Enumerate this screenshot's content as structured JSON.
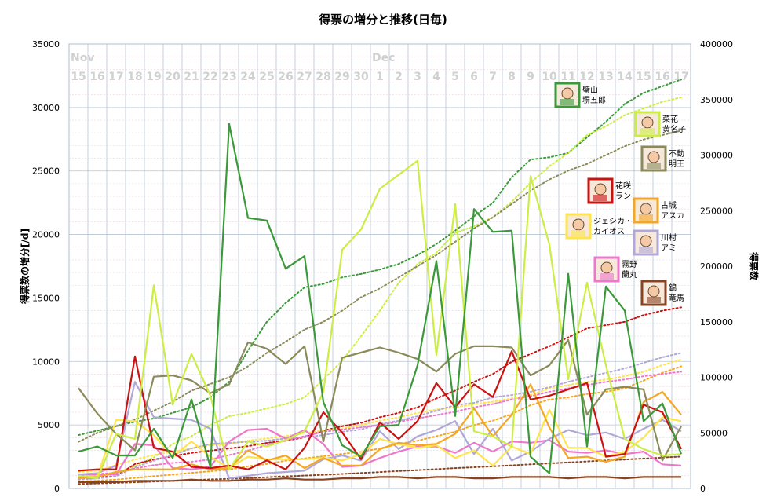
{
  "chart_data": {
    "type": "line",
    "title": "得票の増分と推移(日毎)",
    "ylabel": "得票数の増分[/d]",
    "y2label": "得票数",
    "ylim": [
      0,
      35000
    ],
    "y2lim": [
      0,
      400000
    ],
    "yticks": [
      "0",
      "5000",
      "10000",
      "15000",
      "20000",
      "25000",
      "30000",
      "35000"
    ],
    "y2ticks": [
      "0",
      "50000",
      "100000",
      "150000",
      "200000",
      "250000",
      "300000",
      "350000",
      "400000"
    ],
    "month_labels": [
      {
        "label": "Nov",
        "at": "15"
      },
      {
        "label": "Dec",
        "at": "1"
      }
    ],
    "categories": [
      "15",
      "16",
      "17",
      "18",
      "19",
      "20",
      "21",
      "22",
      "23",
      "24",
      "25",
      "26",
      "27",
      "28",
      "29",
      "30",
      "1",
      "2",
      "3",
      "4",
      "5",
      "6",
      "7",
      "8",
      "9",
      "10",
      "11",
      "12",
      "13",
      "14",
      "15",
      "16",
      "17"
    ],
    "grid": true,
    "series": [
      {
        "name": "璧山 塀五郎",
        "color": "#3a9a3a",
        "values": [
          2900,
          3300,
          2600,
          2600,
          4700,
          2400,
          7000,
          1700,
          28700,
          21300,
          21100,
          17300,
          18300,
          6800,
          3400,
          2500,
          4900,
          5000,
          9700,
          17900,
          5700,
          22000,
          20200,
          20300,
          2500,
          1200,
          16900,
          3300,
          15900,
          14000,
          5300,
          6700,
          2700
        ],
        "cumulative": [
          48000,
          52000,
          56000,
          60000,
          63000,
          68000,
          73000,
          82000,
          96000,
          124000,
          150000,
          167000,
          181000,
          184000,
          190000,
          193000,
          197000,
          202000,
          210000,
          220000,
          232000,
          245000,
          257000,
          280000,
          296000,
          298000,
          302000,
          316000,
          330000,
          346000,
          356000,
          362000,
          368000
        ]
      },
      {
        "name": "菜花 黄名子",
        "color": "#ccee44",
        "values": [
          1000,
          800,
          4300,
          3900,
          16000,
          6600,
          10600,
          7300,
          1500,
          3700,
          3300,
          3800,
          4500,
          7600,
          18800,
          20400,
          23600,
          24700,
          25800,
          10500,
          22400,
          4500,
          4100,
          3300,
          24600,
          19200,
          8600,
          16200,
          9700,
          3900,
          3100,
          2600,
          2700
        ],
        "cumulative": [
          10000,
          12000,
          14000,
          20000,
          28000,
          40000,
          47000,
          57000,
          65000,
          68000,
          72000,
          76000,
          82000,
          98000,
          115000,
          137000,
          160000,
          185000,
          202000,
          212000,
          230000,
          236000,
          244000,
          258000,
          275000,
          290000,
          302000,
          318000,
          326000,
          336000,
          342000,
          348000,
          352000
        ]
      },
      {
        "name": "不動 明王",
        "color": "#8a8a5a",
        "values": [
          7900,
          5900,
          4300,
          3000,
          8800,
          8900,
          8500,
          7500,
          8200,
          11500,
          11000,
          9800,
          11200,
          3700,
          10300,
          10700,
          11100,
          10700,
          10200,
          9200,
          10600,
          11200,
          11200,
          11100,
          8900,
          9700,
          11700,
          5800,
          7800,
          8000,
          7800,
          2200,
          4900
        ],
        "cumulative": [
          42000,
          50000,
          56000,
          62000,
          70000,
          78000,
          88000,
          94000,
          100000,
          110000,
          122000,
          132000,
          143000,
          150000,
          160000,
          172000,
          180000,
          190000,
          200000,
          210000,
          222000,
          234000,
          244000,
          256000,
          268000,
          278000,
          286000,
          292000,
          300000,
          308000,
          314000,
          318000,
          322000
        ]
      },
      {
        "name": "花咲 ラン",
        "color": "#cc1111",
        "values": [
          1400,
          1500,
          1500,
          10400,
          3200,
          2900,
          1700,
          1600,
          1800,
          1500,
          2200,
          1500,
          3200,
          6000,
          4400,
          2300,
          5200,
          3900,
          5300,
          8300,
          6400,
          8200,
          7200,
          10800,
          7000,
          7300,
          7800,
          8300,
          2500,
          2700,
          6600,
          6000,
          3100
        ],
        "cumulative": [
          9000,
          10000,
          11000,
          22000,
          26000,
          29000,
          32000,
          34000,
          36000,
          38000,
          41000,
          43000,
          46000,
          52000,
          56000,
          59000,
          64000,
          68000,
          73000,
          81000,
          88000,
          96000,
          103000,
          114000,
          121000,
          128000,
          136000,
          144000,
          147000,
          150000,
          156000,
          160000,
          163000
        ]
      },
      {
        "name": "古城 アスカ",
        "color": "#f5a623",
        "values": [
          800,
          900,
          1300,
          1500,
          1500,
          1500,
          1900,
          1500,
          1600,
          3000,
          2200,
          2600,
          1600,
          2400,
          1800,
          1800,
          3100,
          3600,
          3400,
          3500,
          4300,
          6300,
          4100,
          5800,
          8200,
          4800,
          2400,
          2500,
          2100,
          2500,
          6800,
          7600,
          5800
        ],
        "cumulative": [
          6000,
          7000,
          8000,
          9500,
          11000,
          12500,
          14000,
          15500,
          17000,
          20000,
          22000,
          25000,
          27000,
          29000,
          31000,
          33000,
          36000,
          40000,
          43000,
          47000,
          51000,
          57000,
          61000,
          67000,
          75000,
          80000,
          82000,
          85000,
          87000,
          90000,
          97000,
          104000,
          110000
        ]
      },
      {
        "name": "ジェシカ・カイオス",
        "color": "#ffe44a",
        "values": [
          900,
          900,
          5400,
          5300,
          4200,
          2500,
          3700,
          2500,
          1600,
          2500,
          2300,
          2300,
          2300,
          2400,
          2200,
          2700,
          3900,
          3500,
          3200,
          3400,
          2400,
          3000,
          1800,
          3300,
          2700,
          6200,
          3200,
          3200,
          2500,
          2900,
          4000,
          5600,
          5300
        ],
        "cumulative": [
          15000,
          16000,
          21000,
          26000,
          30000,
          33000,
          36000,
          39000,
          40000,
          43000,
          45000,
          47000,
          50000,
          52000,
          54000,
          57000,
          61000,
          64000,
          68000,
          71000,
          73000,
          76000,
          78000,
          81000,
          84000,
          90000,
          93000,
          96000,
          98000,
          101000,
          105000,
          111000,
          116000
        ]
      },
      {
        "name": "川村 アミ",
        "color": "#b0a8d8",
        "values": [
          1100,
          1200,
          1800,
          8400,
          5600,
          5500,
          5400,
          4700,
          800,
          1000,
          1200,
          1300,
          1400,
          2300,
          2600,
          2200,
          4500,
          3100,
          4100,
          4600,
          5300,
          2700,
          4700,
          2200,
          2900,
          3900,
          4600,
          4200,
          4400,
          3900,
          4700,
          5400,
          4500
        ],
        "cumulative": [
          8000,
          9000,
          11000,
          19000,
          25000,
          30000,
          36000,
          40000,
          41000,
          42000,
          43000,
          45000,
          46000,
          48000,
          51000,
          53000,
          58000,
          61000,
          65000,
          70000,
          75000,
          77000,
          82000,
          84000,
          87000,
          91000,
          96000,
          100000,
          104000,
          108000,
          113000,
          118000,
          122000
        ]
      },
      {
        "name": "霧野 蘭丸",
        "color": "#ee77cc",
        "values": [
          1100,
          1100,
          1100,
          3500,
          3400,
          1600,
          1500,
          1700,
          3700,
          4600,
          4700,
          3900,
          4600,
          3500,
          1700,
          1800,
          2400,
          2900,
          3300,
          3300,
          2800,
          3600,
          2900,
          3700,
          3600,
          3800,
          2900,
          2800,
          3000,
          2700,
          2900,
          1900,
          1800
        ],
        "cumulative": [
          12000,
          13000,
          14000,
          18000,
          21000,
          23000,
          24000,
          26000,
          30000,
          34000,
          39000,
          43000,
          47000,
          51000,
          53000,
          55000,
          57000,
          60000,
          63000,
          66000,
          69000,
          73000,
          76000,
          80000,
          83000,
          87000,
          90000,
          93000,
          96000,
          98000,
          101000,
          103000,
          105000
        ]
      },
      {
        "name": "錦 竜馬",
        "color": "#884422",
        "values": [
          500,
          500,
          500,
          600,
          600,
          600,
          700,
          600,
          600,
          700,
          700,
          800,
          700,
          700,
          800,
          800,
          900,
          900,
          800,
          900,
          900,
          800,
          800,
          900,
          900,
          900,
          800,
          900,
          900,
          800,
          900,
          900,
          900
        ],
        "cumulative": [
          4000,
          4500,
          5000,
          5600,
          6200,
          6800,
          7500,
          8100,
          8700,
          9400,
          10100,
          10900,
          11600,
          12300,
          13100,
          13900,
          14800,
          15700,
          16500,
          17400,
          18300,
          19100,
          19900,
          20800,
          21700,
          22600,
          23400,
          24300,
          25200,
          26000,
          26900,
          27800,
          28700
        ]
      }
    ],
    "annotations": [
      {
        "label": "璧山\n塀五郎",
        "color": "#3a9a3a"
      },
      {
        "label": "菜花\n黄名子",
        "color": "#ccee44"
      },
      {
        "label": "不動\n明王",
        "color": "#8a8a5a"
      },
      {
        "label": "花咲\nラン",
        "color": "#cc1111"
      },
      {
        "label": "古城\nアスカ",
        "color": "#f5a623"
      },
      {
        "label": "ジェシカ・\nカイオス",
        "color": "#ffe44a"
      },
      {
        "label": "川村\nアミ",
        "color": "#b0a8d8"
      },
      {
        "label": "霧野\n蘭丸",
        "color": "#ee77cc"
      },
      {
        "label": "錦\n竜馬",
        "color": "#884422"
      }
    ]
  }
}
